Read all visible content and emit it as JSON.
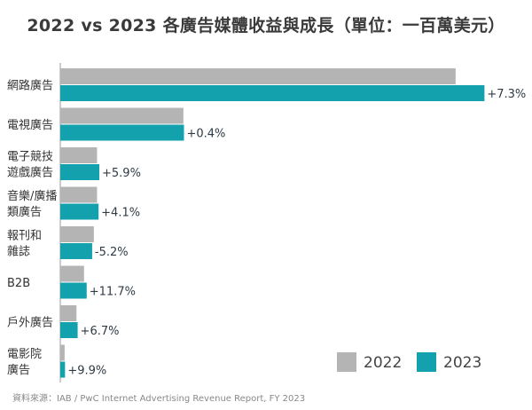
{
  "title": "2022 vs 2023 各廣告媒體收益與成長（單位：一百萬美元）",
  "source": "資料來源：IAB / PwC Internet Advertising Revenue Report, FY 2023",
  "colors": {
    "y2022": "#b4b4b4",
    "y2023": "#12a1ad",
    "axis": "#9a9a9a",
    "text": "#333333"
  },
  "chart_data": {
    "type": "bar",
    "orientation": "horizontal",
    "title": "2022 vs 2023 各廣告媒體收益與成長（單位：一百萬美元）",
    "categories": [
      [
        "網路廣告"
      ],
      [
        "電視廣告"
      ],
      [
        "電子競技",
        "遊戲廣告"
      ],
      [
        "音樂/廣播",
        "類廣告"
      ],
      [
        "報刊和",
        "雜誌"
      ],
      [
        "B2B"
      ],
      [
        "戶外廣告"
      ],
      [
        "電影院",
        "廣告"
      ]
    ],
    "series": [
      {
        "name": "2022",
        "values": [
          209700,
          65300,
          19500,
          19500,
          17800,
          12600,
          8600,
          2300
        ]
      },
      {
        "name": "2023",
        "values": [
          225000,
          65600,
          20700,
          20300,
          16900,
          14000,
          9200,
          2500
        ]
      }
    ],
    "growth_labels": [
      "+7.3%",
      "+0.4%",
      "+5.9%",
      "+4.1%",
      "-5.2%",
      "+11.7%",
      "+6.7%",
      "+9.9%"
    ],
    "xlim": [
      0,
      230000
    ],
    "grid": false,
    "legend_position": "bottom-right"
  }
}
